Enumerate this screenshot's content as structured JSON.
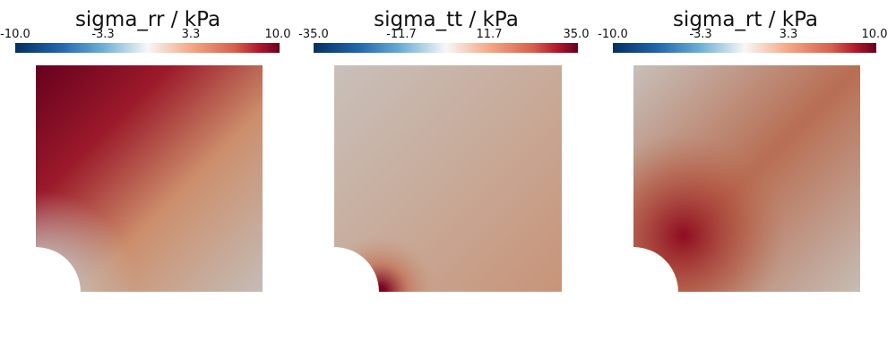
{
  "chart_data": [
    {
      "type": "heatmap",
      "title": "sigma_rr / kPa",
      "colorbar": {
        "range": [
          -10.0,
          10.0
        ],
        "ticks": [
          "-10.0",
          "-3.3",
          "3.3",
          "10.0"
        ],
        "colormap": "blue-white-red"
      }
    },
    {
      "type": "heatmap",
      "title": "sigma_tt / kPa",
      "colorbar": {
        "range": [
          -35.0,
          35.0
        ],
        "ticks": [
          "-35.0",
          "-11.7",
          "11.7",
          "35.0"
        ],
        "colormap": "blue-white-red"
      }
    },
    {
      "type": "heatmap",
      "title": "sigma_rt / kPa",
      "colorbar": {
        "range": [
          -10.0,
          10.0
        ],
        "ticks": [
          "-10.0",
          "-3.3",
          "3.3",
          "10.0"
        ],
        "colormap": "blue-white-red"
      }
    }
  ],
  "colors": {
    "cmap_low": "#053061",
    "cmap_mid": "#f7f7f7",
    "cmap_high": "#67001f",
    "neutral": "#c8c0b8"
  }
}
